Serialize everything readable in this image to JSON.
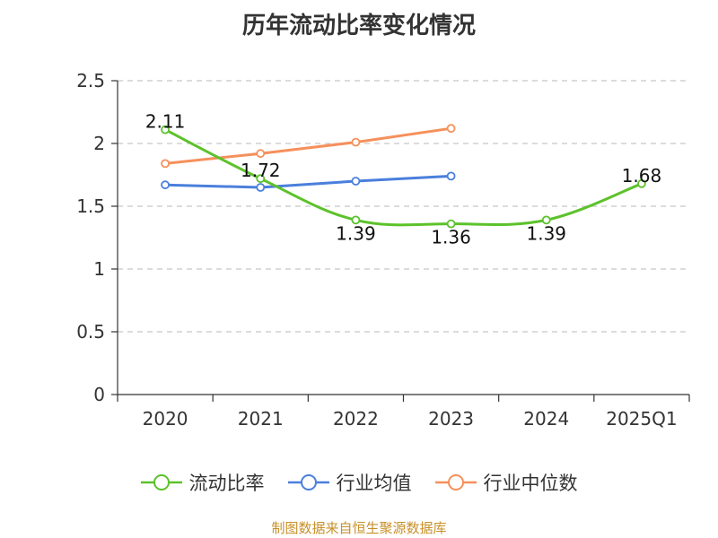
{
  "chart_data": {
    "type": "line",
    "title": "历年流动比率变化情况",
    "categories": [
      "2020",
      "2021",
      "2022",
      "2023",
      "2024",
      "2025Q1"
    ],
    "ylim": [
      0,
      2.5
    ],
    "yticks": [
      "0",
      "0.5",
      "1",
      "1.5",
      "2",
      "2.5"
    ],
    "grid": true,
    "legend_position": "bottom",
    "series": [
      {
        "name": "流动比率",
        "color": "#5cc22b",
        "values": [
          2.11,
          1.72,
          1.39,
          1.36,
          1.39,
          1.68
        ],
        "labels": [
          "2.11",
          "1.72",
          "1.39",
          "1.36",
          "1.39",
          "1.68"
        ],
        "smooth": true
      },
      {
        "name": "行业均值",
        "color": "#4a7fdc",
        "values": [
          1.67,
          1.65,
          1.7,
          1.74,
          null,
          null
        ]
      },
      {
        "name": "行业中位数",
        "color": "#f5905b",
        "values": [
          1.84,
          1.92,
          2.01,
          2.12,
          null,
          null
        ]
      }
    ]
  },
  "footer": {
    "source": "制图数据来自恒生聚源数据库"
  }
}
